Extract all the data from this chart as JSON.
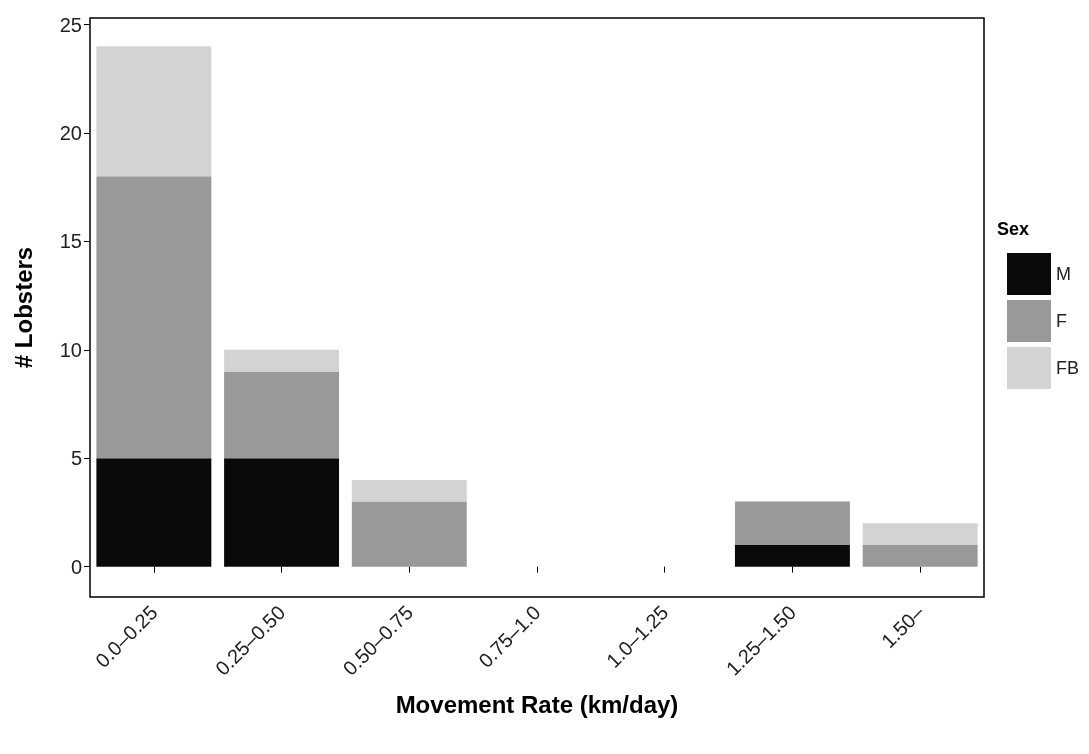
{
  "chart_data": {
    "type": "bar",
    "stacked": true,
    "xlabel": "Movement Rate (km/day)",
    "ylabel": "# Lobsters",
    "legend_title": "Sex",
    "legend": "right",
    "grid": false,
    "categories": [
      "0.0–0.25",
      "0.25–0.50",
      "0.50–0.75",
      "0.75–1.0",
      "1.0–1.25",
      "1.25–1.50",
      "1.50–"
    ],
    "series": [
      {
        "name": "M",
        "color": "#0a0a0a",
        "values": [
          5,
          5,
          0,
          0,
          0,
          1,
          0
        ]
      },
      {
        "name": "F",
        "color": "#999999",
        "values": [
          13,
          4,
          3,
          0,
          0,
          2,
          1
        ]
      },
      {
        "name": "FB",
        "color": "#d3d3d3",
        "values": [
          6,
          1,
          1,
          0,
          0,
          0,
          1
        ]
      }
    ],
    "ylim": [
      -1.4,
      25.3
    ],
    "yticks": [
      0,
      5,
      10,
      15,
      20,
      25
    ]
  }
}
